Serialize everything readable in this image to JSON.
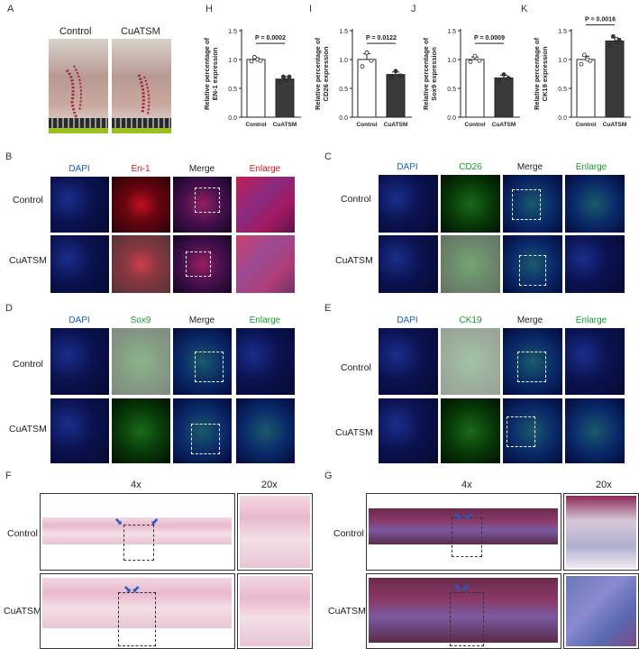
{
  "panels": {
    "A": "A",
    "B": "B",
    "C": "C",
    "D": "D",
    "E": "E",
    "F": "F",
    "G": "G",
    "H": "H",
    "I": "I",
    "J": "J",
    "K": "K"
  },
  "panelA": {
    "control": "Control",
    "cuatsm": "CuATSM"
  },
  "panelB": {
    "channels": [
      "DAPI",
      "En-1",
      "Merge",
      "Enlarge"
    ],
    "rows": [
      "Control",
      "CuATSM"
    ]
  },
  "panelC": {
    "channels": [
      "DAPI",
      "CD26",
      "Merge",
      "Enlarge"
    ],
    "rows": [
      "Control",
      "CuATSM"
    ]
  },
  "panelD": {
    "channels": [
      "DAPI",
      "Sox9",
      "Merge",
      "Enlarge"
    ],
    "rows": [
      "Control",
      "CuATSM"
    ]
  },
  "panelE": {
    "channels": [
      "DAPI",
      "CK19",
      "Merge",
      "Enlarge"
    ],
    "rows": [
      "Control",
      "CuATSM"
    ]
  },
  "panelF": {
    "mag_left": "4x",
    "mag_right": "20x",
    "rows": [
      "Control",
      "CuATSM"
    ]
  },
  "panelG": {
    "mag_left": "4x",
    "mag_right": "20x",
    "rows": [
      "Control",
      "CuATSM"
    ]
  },
  "colors": {
    "dapi": "#1a5fc8",
    "en1": "#d01a1a",
    "green": "#1a9a2a",
    "merge": "#222222"
  },
  "chart_data": [
    {
      "type": "bar",
      "panel": "H",
      "categories": [
        "Control",
        "CuATSM"
      ],
      "values": [
        1.0,
        0.66
      ],
      "ylabel": "Relative percentage of EN-1 expression",
      "ylim": [
        0,
        1.5
      ],
      "yticks": [
        0.0,
        0.5,
        1.0,
        1.5
      ],
      "pvalue": "P = 0.0002",
      "points": [
        [
          0.97,
          1.04,
          1.0,
          0.98
        ],
        [
          0.6,
          0.7,
          0.64,
          0.7
        ]
      ]
    },
    {
      "type": "bar",
      "panel": "I",
      "categories": [
        "Control",
        "CuATSM"
      ],
      "values": [
        1.0,
        0.74
      ],
      "ylabel": "Relative percentage of CD26 expression",
      "ylim": [
        0,
        1.5
      ],
      "yticks": [
        0.0,
        0.5,
        1.0,
        1.5
      ],
      "pvalue": "P = 0.0122",
      "points": [
        [
          0.88,
          1.12,
          0.98
        ],
        [
          0.7,
          0.8,
          0.72
        ]
      ]
    },
    {
      "type": "bar",
      "panel": "J",
      "categories": [
        "Control",
        "CuATSM"
      ],
      "values": [
        1.0,
        0.68
      ],
      "ylabel": "Relative percentage of Sox9 expression",
      "ylim": [
        0,
        1.5
      ],
      "yticks": [
        0.0,
        0.5,
        1.0,
        1.5
      ],
      "pvalue": "P = 0.0009",
      "points": [
        [
          0.96,
          1.06,
          0.98
        ],
        [
          0.62,
          0.74,
          0.68
        ]
      ]
    },
    {
      "type": "bar",
      "panel": "K",
      "categories": [
        "Control",
        "CuATSM"
      ],
      "values": [
        1.0,
        1.32
      ],
      "ylabel": "Relative percentage of CK19 expression",
      "ylim": [
        0,
        1.5
      ],
      "yticks": [
        0.0,
        0.5,
        1.0,
        1.5
      ],
      "pvalue": "P = 0.0016",
      "points": [
        [
          0.92,
          1.08,
          1.0,
          0.98
        ],
        [
          1.24,
          1.4,
          1.3,
          1.34
        ]
      ]
    }
  ]
}
